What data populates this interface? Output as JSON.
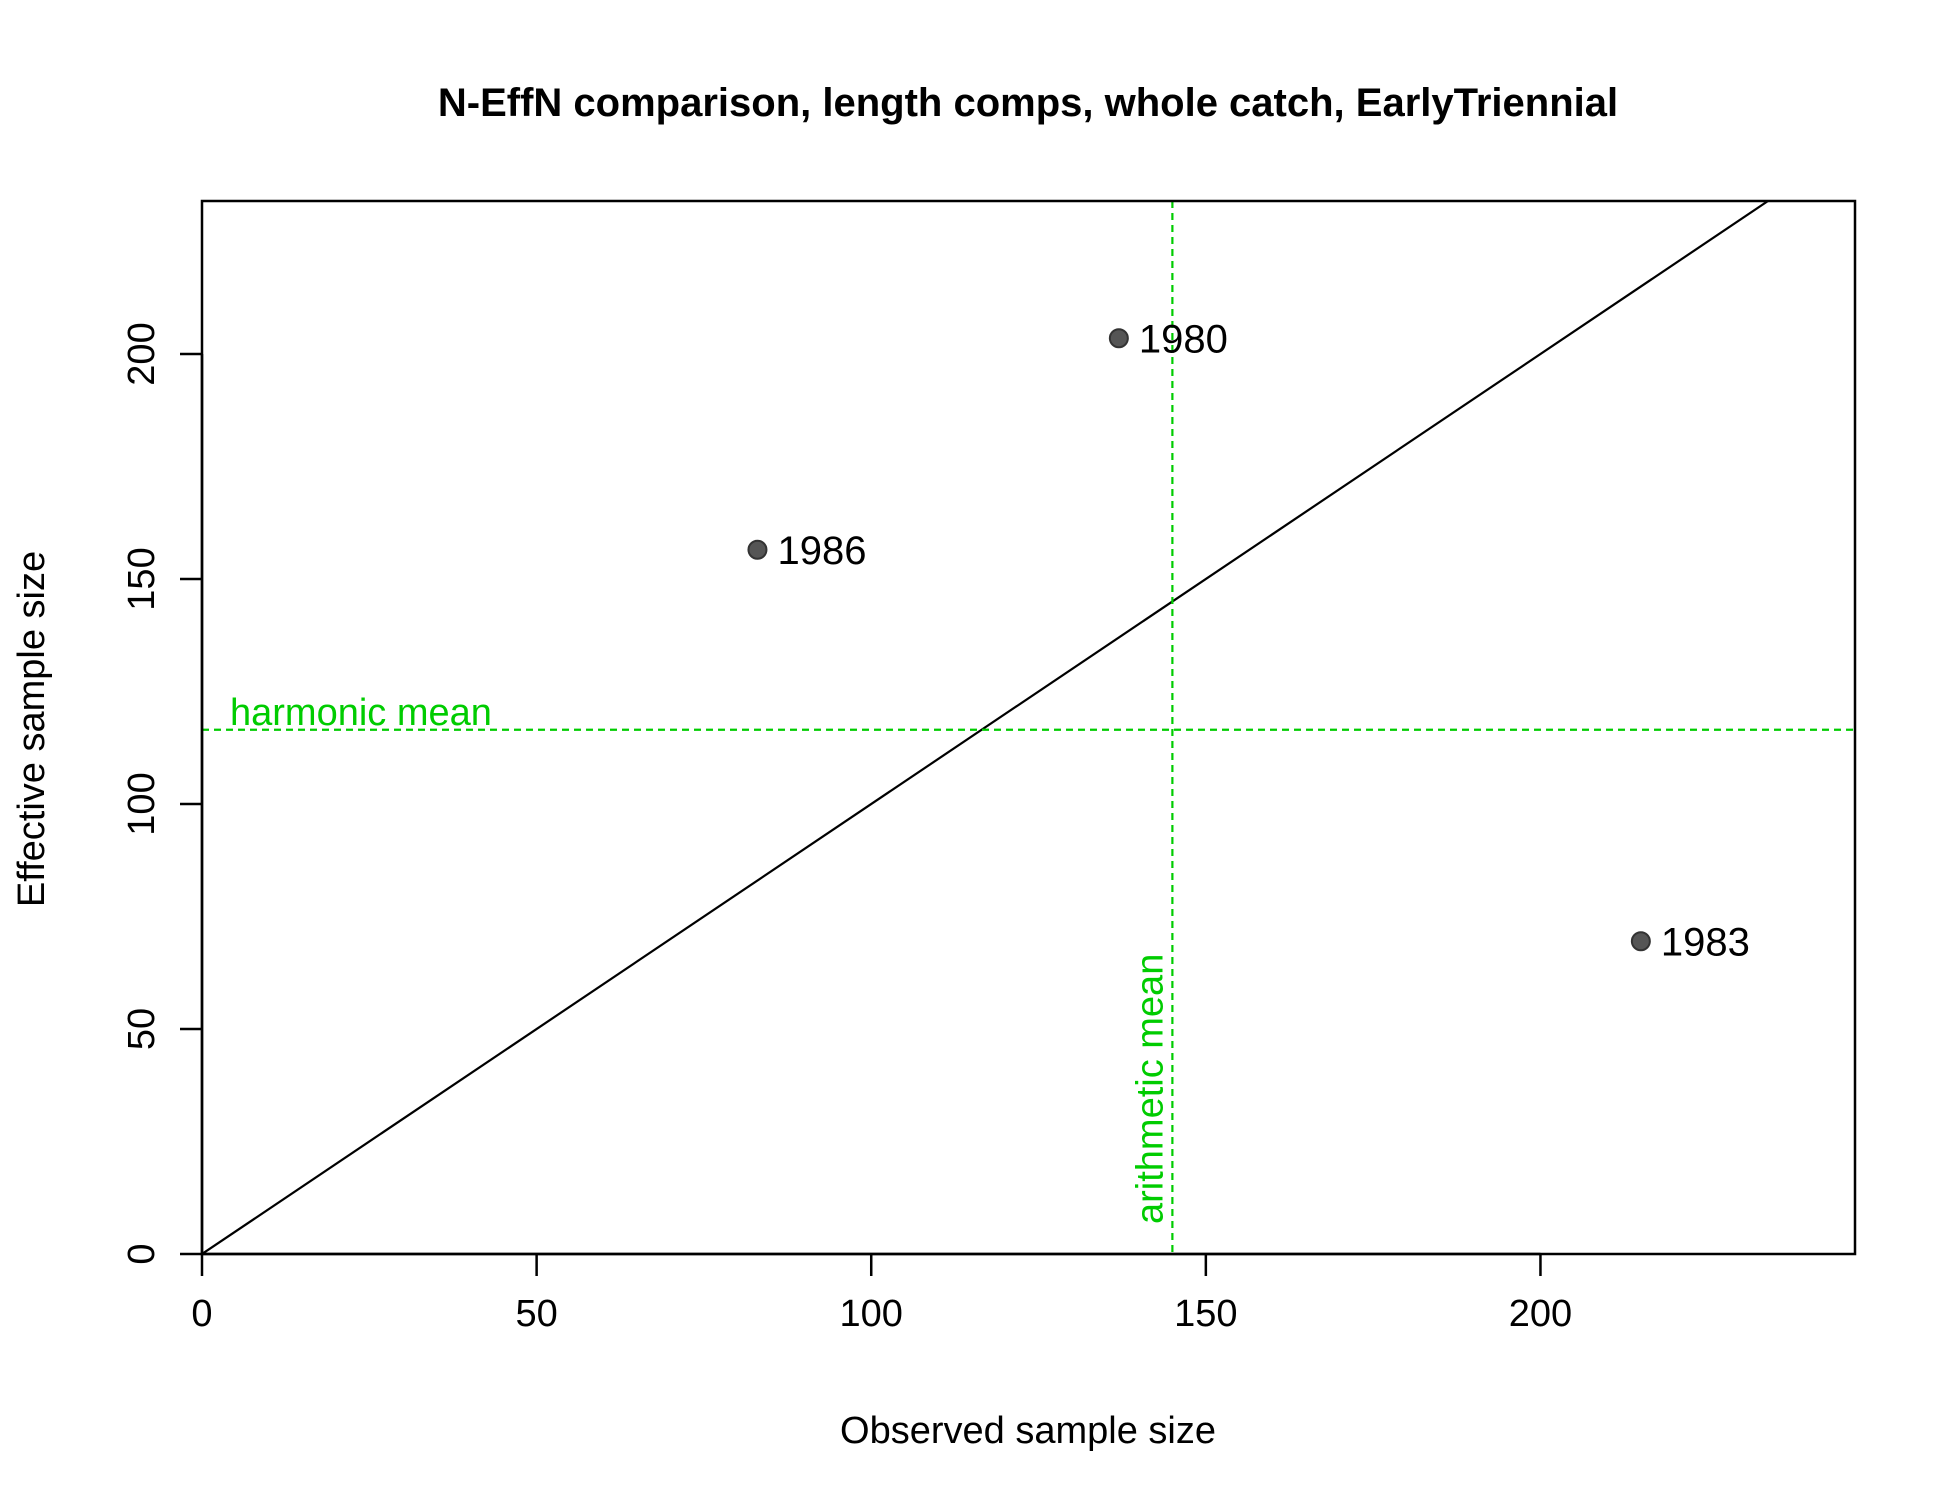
{
  "chart_data": {
    "type": "scatter",
    "title": "N-EffN comparison, length comps, whole catch, EarlyTriennial",
    "xlabel": "Observed sample size",
    "ylabel": "Effective sample size",
    "xlim": [
      0,
      247
    ],
    "ylim": [
      0,
      234
    ],
    "x_ticks": [
      0,
      50,
      100,
      150,
      200
    ],
    "y_ticks": [
      0,
      50,
      100,
      150,
      200
    ],
    "points": [
      {
        "label": "1980",
        "x": 137,
        "y": 203.5
      },
      {
        "label": "1986",
        "x": 83,
        "y": 156.5
      },
      {
        "label": "1983",
        "x": 215,
        "y": 69.5
      }
    ],
    "identity_line": {
      "slope": 1,
      "intercept": 0,
      "color": "#000000"
    },
    "harmonic_mean": {
      "label": "harmonic mean",
      "y": 116.5,
      "color": "#00cc00"
    },
    "arithmetic_mean": {
      "label": "arithmetic mean",
      "x": 145,
      "color": "#00cc00"
    },
    "point_color": "#555555",
    "grid": false
  }
}
